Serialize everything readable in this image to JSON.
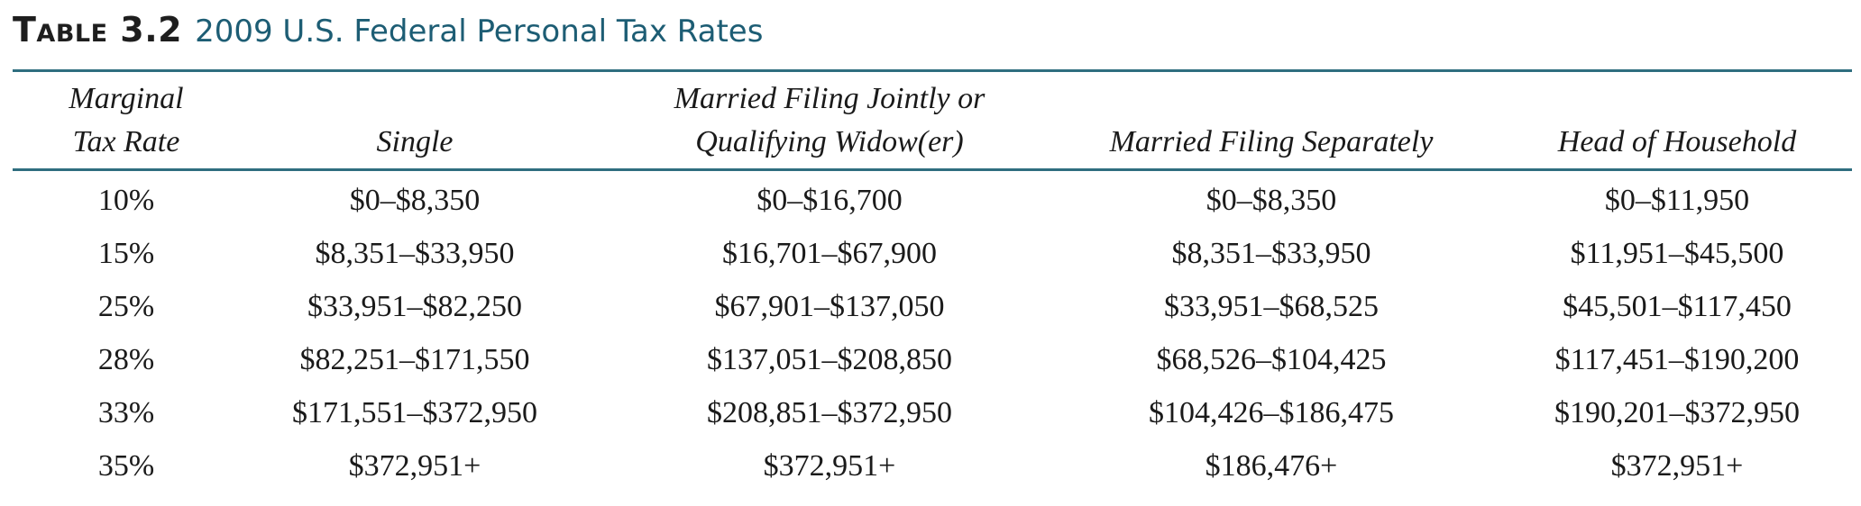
{
  "caption": {
    "label": "Table 3.2",
    "title": "2009 U.S. Federal Personal Tax Rates"
  },
  "headers": {
    "rate": [
      "Marginal",
      "Tax Rate"
    ],
    "single": "Single",
    "joint": [
      "Married Filing Jointly or",
      "Qualifying Widow(er)"
    ],
    "separate": "Married Filing Separately",
    "household": "Head of Household"
  },
  "rows": [
    {
      "rate": "10%",
      "single": "$0–$8,350",
      "joint": "$0–$16,700",
      "separate": "$0–$8,350",
      "household": "$0–$11,950"
    },
    {
      "rate": "15%",
      "single": "$8,351–$33,950",
      "joint": "$16,701–$67,900",
      "separate": "$8,351–$33,950",
      "household": "$11,951–$45,500"
    },
    {
      "rate": "25%",
      "single": "$33,951–$82,250",
      "joint": "$67,901–$137,050",
      "separate": "$33,951–$68,525",
      "household": "$45,501–$117,450"
    },
    {
      "rate": "28%",
      "single": "$82,251–$171,550",
      "joint": "$137,051–$208,850",
      "separate": "$68,526–$104,425",
      "household": "$117,451–$190,200"
    },
    {
      "rate": "33%",
      "single": "$171,551–$372,950",
      "joint": "$208,851–$372,950",
      "separate": "$104,426–$186,475",
      "household": "$190,201–$372,950"
    },
    {
      "rate": "35%",
      "single": "$372,951+",
      "joint": "$372,951+",
      "separate": "$186,476+",
      "household": "$372,951+"
    }
  ]
}
